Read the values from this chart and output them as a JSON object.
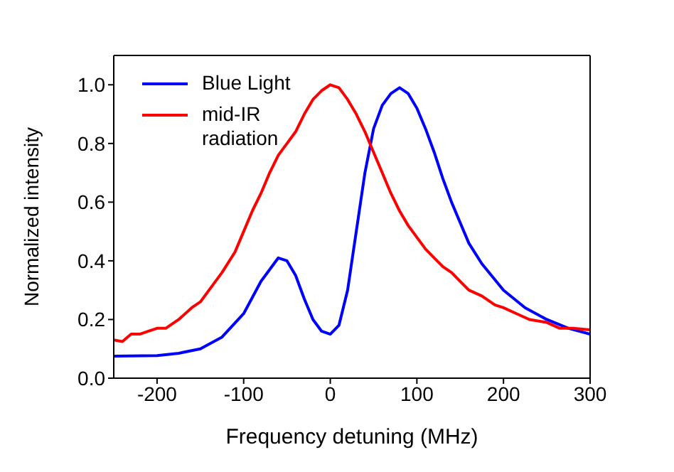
{
  "chart_data": {
    "type": "line",
    "xlabel": "Frequency detuning (MHz)",
    "ylabel": "Normalized intensity",
    "xlim": [
      -250,
      300
    ],
    "xticks": [
      -200,
      -100,
      0,
      100,
      200,
      300
    ],
    "ylim": [
      0,
      1.1
    ],
    "yticks": [
      {
        "value": 0,
        "label": "0.0"
      },
      0.2,
      0.4,
      0.6,
      0.8,
      {
        "value": 1,
        "label": "1.0"
      }
    ],
    "legend": "top left",
    "marker": "none",
    "line_style": "solid",
    "series": [
      {
        "name": "Blue Light",
        "color": "#0000ff",
        "x": [
          -250,
          -200,
          -175,
          -150,
          -125,
          -100,
          -80,
          -60,
          -50,
          -40,
          -30,
          -20,
          -10,
          0,
          10,
          20,
          30,
          40,
          50,
          60,
          70,
          80,
          90,
          100,
          110,
          120,
          130,
          140,
          150,
          160,
          175,
          200,
          225,
          250,
          275,
          300
        ],
        "values": [
          0.075,
          0.077,
          0.085,
          0.1,
          0.14,
          0.22,
          0.33,
          0.41,
          0.4,
          0.35,
          0.27,
          0.2,
          0.16,
          0.15,
          0.18,
          0.3,
          0.5,
          0.7,
          0.85,
          0.93,
          0.97,
          0.99,
          0.97,
          0.92,
          0.85,
          0.77,
          0.68,
          0.6,
          0.53,
          0.46,
          0.39,
          0.3,
          0.24,
          0.2,
          0.17,
          0.15
        ]
      },
      {
        "name": "mid-IR radiation",
        "color": "#ff0000",
        "x": [
          -250,
          -240,
          -230,
          -220,
          -210,
          -200,
          -190,
          -175,
          -160,
          -150,
          -140,
          -125,
          -110,
          -100,
          -90,
          -80,
          -70,
          -60,
          -50,
          -40,
          -30,
          -20,
          -10,
          0,
          10,
          20,
          30,
          40,
          50,
          60,
          70,
          80,
          90,
          100,
          110,
          120,
          130,
          140,
          150,
          160,
          175,
          190,
          200,
          215,
          230,
          250,
          265,
          280,
          300
        ],
        "values": [
          0.13,
          0.125,
          0.15,
          0.15,
          0.16,
          0.17,
          0.17,
          0.2,
          0.24,
          0.26,
          0.3,
          0.36,
          0.43,
          0.5,
          0.57,
          0.63,
          0.7,
          0.76,
          0.8,
          0.84,
          0.9,
          0.95,
          0.98,
          1.0,
          0.99,
          0.95,
          0.9,
          0.84,
          0.77,
          0.7,
          0.63,
          0.57,
          0.52,
          0.48,
          0.44,
          0.41,
          0.38,
          0.36,
          0.33,
          0.3,
          0.28,
          0.25,
          0.24,
          0.22,
          0.2,
          0.19,
          0.17,
          0.17,
          0.165
        ]
      }
    ]
  }
}
